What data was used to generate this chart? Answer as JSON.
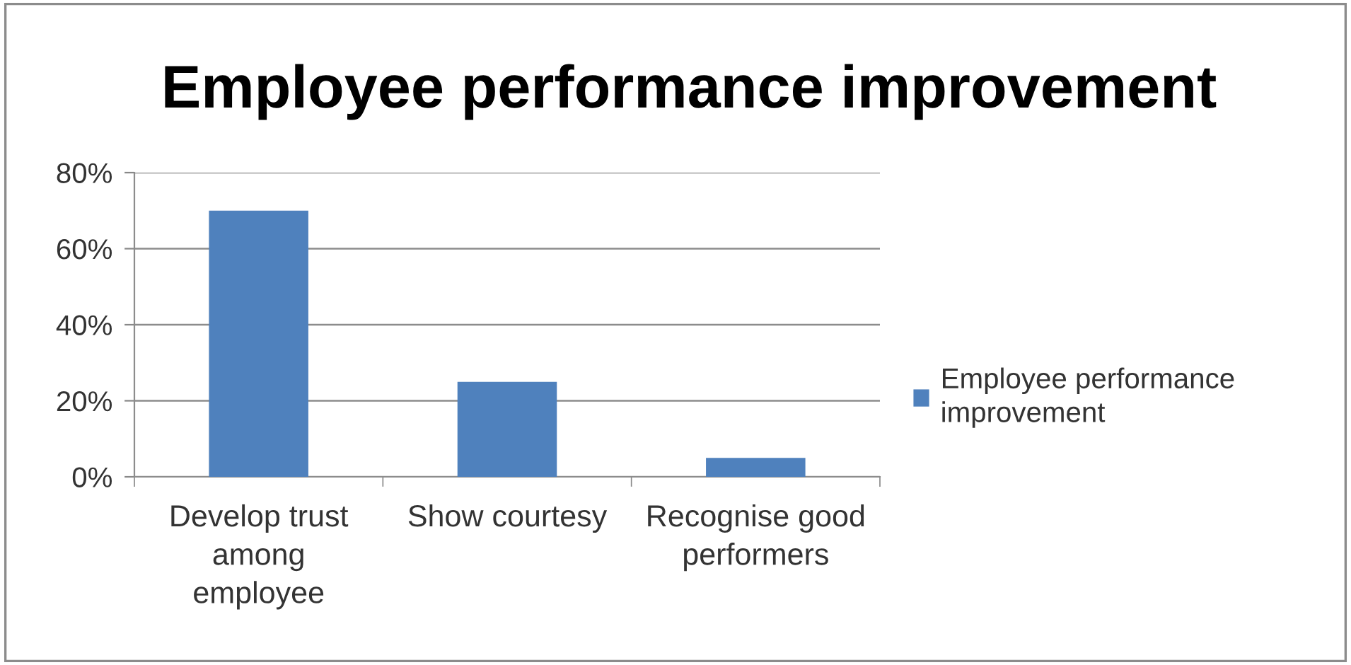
{
  "chart_data": {
    "type": "bar",
    "title": "Employee performance improvement",
    "categories": [
      "Develop trust\namong\nemployee",
      "Show courtesy",
      "Recognise good\nperformers"
    ],
    "series": [
      {
        "name": "Employee performance\nimprovement",
        "color": "#4f81bd",
        "values": [
          70,
          25,
          5
        ]
      }
    ],
    "ylim": [
      0,
      80
    ],
    "yticks": [
      {
        "value": 0,
        "label": "0%"
      },
      {
        "value": 20,
        "label": "20%"
      },
      {
        "value": 40,
        "label": "40%"
      },
      {
        "value": 60,
        "label": "60%"
      },
      {
        "value": 80,
        "label": "80%"
      }
    ],
    "grid": "y",
    "legend": "right"
  }
}
